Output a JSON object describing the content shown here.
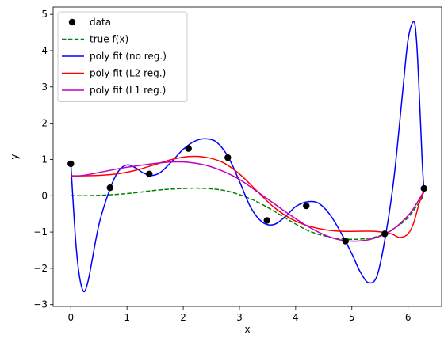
{
  "chart_data": {
    "type": "line",
    "title": "",
    "xlabel": "x",
    "ylabel": "y",
    "xlim": [
      -0.3142,
      6.5973
    ],
    "ylim": [
      -3.05,
      5.2
    ],
    "x_ticks": [
      0,
      1,
      2,
      3,
      4,
      5,
      6
    ],
    "y_ticks": [
      -3,
      -2,
      -1,
      0,
      1,
      2,
      3,
      4,
      5
    ],
    "grid": false,
    "legend_position": "upper-left",
    "series": [
      {
        "name": "data",
        "kind": "scatter",
        "color": "#000000",
        "x": [
          0.0,
          0.698,
          1.396,
          2.094,
          2.793,
          3.491,
          4.189,
          4.887,
          5.585,
          6.283
        ],
        "y": [
          0.88,
          0.22,
          0.6,
          1.3,
          1.05,
          -0.68,
          -0.28,
          -1.25,
          -1.05,
          0.2
        ]
      },
      {
        "name": "true f(x)",
        "kind": "line",
        "style": "dashed",
        "color": "#008000",
        "x": [
          0.0,
          0.25,
          0.5,
          0.75,
          1.0,
          1.25,
          1.5,
          1.75,
          2.0,
          2.25,
          2.5,
          2.75,
          3.0,
          3.25,
          3.5,
          3.75,
          4.0,
          4.25,
          4.5,
          4.75,
          5.0,
          5.25,
          5.5,
          5.75,
          6.0,
          6.28
        ],
        "y": [
          0.0,
          0.0,
          0.01,
          0.03,
          0.06,
          0.1,
          0.15,
          0.18,
          0.2,
          0.21,
          0.19,
          0.14,
          0.03,
          -0.12,
          -0.32,
          -0.55,
          -0.78,
          -0.98,
          -1.1,
          -1.18,
          -1.2,
          -1.18,
          -1.1,
          -0.9,
          -0.6,
          0.0
        ]
      },
      {
        "name": "poly fit (no reg.)",
        "kind": "line",
        "style": "solid",
        "color": "#0000ff",
        "x": [
          0.0,
          0.1,
          0.2,
          0.3,
          0.5,
          0.7,
          0.85,
          1.0,
          1.15,
          1.3,
          1.45,
          1.6,
          1.8,
          2.0,
          2.2,
          2.4,
          2.6,
          2.8,
          3.0,
          3.2,
          3.4,
          3.6,
          3.8,
          4.0,
          4.2,
          4.4,
          4.6,
          4.8,
          5.0,
          5.15,
          5.3,
          5.45,
          5.6,
          5.75,
          5.9,
          6.0,
          6.1,
          6.15,
          6.2,
          6.25,
          6.28
        ],
        "y": [
          0.88,
          -1.5,
          -2.55,
          -2.4,
          -0.8,
          0.2,
          0.68,
          0.85,
          0.77,
          0.62,
          0.56,
          0.65,
          0.95,
          1.28,
          1.5,
          1.57,
          1.47,
          1.07,
          0.4,
          -0.32,
          -0.72,
          -0.8,
          -0.6,
          -0.3,
          -0.17,
          -0.2,
          -0.5,
          -1.0,
          -1.6,
          -2.1,
          -2.4,
          -2.2,
          -1.1,
          0.5,
          2.8,
          4.3,
          4.8,
          4.3,
          2.8,
          1.0,
          0.2
        ]
      },
      {
        "name": "poly fit (L2 reg.)",
        "kind": "line",
        "style": "solid",
        "color": "#ff0000",
        "x": [
          0.0,
          0.3,
          0.6,
          0.9,
          1.2,
          1.5,
          1.8,
          2.1,
          2.4,
          2.7,
          3.0,
          3.3,
          3.6,
          3.9,
          4.2,
          4.5,
          4.8,
          5.1,
          5.4,
          5.7,
          5.85,
          6.0,
          6.1,
          6.2,
          6.28
        ],
        "y": [
          0.55,
          0.55,
          0.57,
          0.62,
          0.72,
          0.86,
          1.0,
          1.08,
          1.06,
          0.92,
          0.6,
          0.15,
          -0.3,
          -0.62,
          -0.82,
          -0.93,
          -0.98,
          -0.98,
          -0.98,
          -1.05,
          -1.15,
          -1.05,
          -0.75,
          -0.2,
          0.1
        ]
      },
      {
        "name": "poly fit (L1 reg.)",
        "kind": "line",
        "style": "solid",
        "color": "#bf00bf",
        "x": [
          0.0,
          0.3,
          0.6,
          0.9,
          1.2,
          1.5,
          1.8,
          2.1,
          2.4,
          2.7,
          3.0,
          3.3,
          3.6,
          3.9,
          4.2,
          4.5,
          4.8,
          5.1,
          5.4,
          5.7,
          6.0,
          6.15,
          6.28
        ],
        "y": [
          0.52,
          0.58,
          0.67,
          0.76,
          0.83,
          0.89,
          0.93,
          0.92,
          0.84,
          0.68,
          0.45,
          0.13,
          -0.2,
          -0.53,
          -0.83,
          -1.07,
          -1.22,
          -1.25,
          -1.17,
          -0.96,
          -0.55,
          -0.22,
          0.12
        ]
      }
    ]
  }
}
